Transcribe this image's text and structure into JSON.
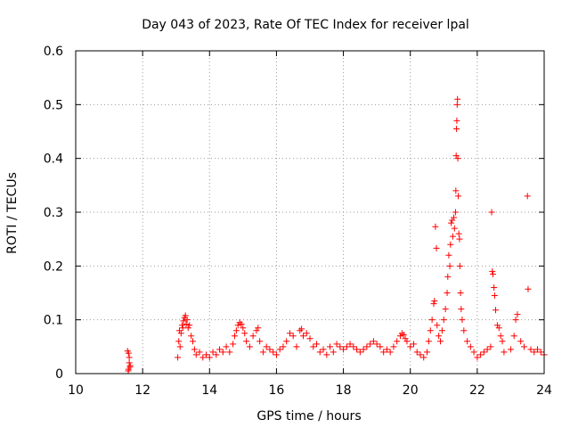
{
  "chart_data": {
    "type": "scatter",
    "title": "Day 043 of 2023, Rate Of TEC Index for receiver lpal",
    "xlabel": "GPS time / hours",
    "ylabel": "ROTI / TECUs",
    "xlim": [
      10,
      24
    ],
    "ylim": [
      0,
      0.6
    ],
    "x_ticks": [
      "10",
      "12",
      "14",
      "16",
      "18",
      "20",
      "22",
      "24"
    ],
    "y_ticks": [
      "0",
      "0.1",
      "0.2",
      "0.3",
      "0.4",
      "0.5",
      "0.6"
    ],
    "grid": true,
    "marker": "plus",
    "color": "#ff0000",
    "series": [
      {
        "points": [
          [
            11.55,
            0.042
          ],
          [
            11.58,
            0.038
          ],
          [
            11.6,
            0.02
          ],
          [
            11.62,
            0.012
          ],
          [
            11.58,
            0.008
          ],
          [
            11.63,
            0.015
          ],
          [
            11.57,
            0.005
          ],
          [
            11.6,
            0.03
          ],
          [
            13.05,
            0.03
          ],
          [
            13.08,
            0.06
          ],
          [
            13.1,
            0.08
          ],
          [
            13.12,
            0.05
          ],
          [
            13.15,
            0.075
          ],
          [
            13.18,
            0.09
          ],
          [
            13.2,
            0.085
          ],
          [
            13.22,
            0.098
          ],
          [
            13.25,
            0.104
          ],
          [
            13.28,
            0.108
          ],
          [
            13.3,
            0.092
          ],
          [
            13.33,
            0.1
          ],
          [
            13.36,
            0.085
          ],
          [
            13.4,
            0.09
          ],
          [
            13.45,
            0.07
          ],
          [
            13.5,
            0.06
          ],
          [
            13.55,
            0.045
          ],
          [
            13.6,
            0.035
          ],
          [
            13.7,
            0.04
          ],
          [
            13.8,
            0.03
          ],
          [
            13.9,
            0.035
          ],
          [
            14.0,
            0.03
          ],
          [
            14.1,
            0.04
          ],
          [
            14.2,
            0.035
          ],
          [
            14.3,
            0.045
          ],
          [
            14.4,
            0.04
          ],
          [
            14.5,
            0.05
          ],
          [
            14.6,
            0.04
          ],
          [
            14.7,
            0.055
          ],
          [
            14.75,
            0.07
          ],
          [
            14.8,
            0.08
          ],
          [
            14.85,
            0.09
          ],
          [
            14.9,
            0.095
          ],
          [
            14.95,
            0.092
          ],
          [
            15.0,
            0.085
          ],
          [
            15.05,
            0.075
          ],
          [
            15.1,
            0.06
          ],
          [
            15.2,
            0.05
          ],
          [
            15.3,
            0.07
          ],
          [
            15.4,
            0.08
          ],
          [
            15.45,
            0.085
          ],
          [
            15.5,
            0.06
          ],
          [
            15.6,
            0.04
          ],
          [
            15.7,
            0.05
          ],
          [
            15.8,
            0.045
          ],
          [
            15.9,
            0.04
          ],
          [
            16.0,
            0.035
          ],
          [
            16.1,
            0.045
          ],
          [
            16.2,
            0.05
          ],
          [
            16.3,
            0.06
          ],
          [
            16.4,
            0.075
          ],
          [
            16.5,
            0.07
          ],
          [
            16.6,
            0.05
          ],
          [
            16.7,
            0.08
          ],
          [
            16.75,
            0.083
          ],
          [
            16.8,
            0.07
          ],
          [
            16.9,
            0.075
          ],
          [
            17.0,
            0.065
          ],
          [
            17.1,
            0.05
          ],
          [
            17.2,
            0.055
          ],
          [
            17.3,
            0.04
          ],
          [
            17.4,
            0.045
          ],
          [
            17.5,
            0.035
          ],
          [
            17.6,
            0.05
          ],
          [
            17.7,
            0.04
          ],
          [
            17.8,
            0.055
          ],
          [
            17.9,
            0.05
          ],
          [
            18.0,
            0.045
          ],
          [
            18.1,
            0.05
          ],
          [
            18.2,
            0.055
          ],
          [
            18.3,
            0.05
          ],
          [
            18.4,
            0.045
          ],
          [
            18.5,
            0.04
          ],
          [
            18.6,
            0.045
          ],
          [
            18.7,
            0.05
          ],
          [
            18.8,
            0.055
          ],
          [
            18.9,
            0.06
          ],
          [
            19.0,
            0.055
          ],
          [
            19.1,
            0.05
          ],
          [
            19.2,
            0.04
          ],
          [
            19.3,
            0.045
          ],
          [
            19.4,
            0.04
          ],
          [
            19.5,
            0.05
          ],
          [
            19.6,
            0.06
          ],
          [
            19.7,
            0.07
          ],
          [
            19.75,
            0.075
          ],
          [
            19.8,
            0.072
          ],
          [
            19.85,
            0.065
          ],
          [
            19.9,
            0.06
          ],
          [
            20.0,
            0.05
          ],
          [
            20.1,
            0.055
          ],
          [
            20.2,
            0.04
          ],
          [
            20.3,
            0.035
          ],
          [
            20.4,
            0.03
          ],
          [
            20.5,
            0.04
          ],
          [
            20.55,
            0.06
          ],
          [
            20.6,
            0.08
          ],
          [
            20.65,
            0.1
          ],
          [
            20.7,
            0.13
          ],
          [
            20.72,
            0.135
          ],
          [
            20.75,
            0.273
          ],
          [
            20.78,
            0.233
          ],
          [
            20.8,
            0.09
          ],
          [
            20.85,
            0.07
          ],
          [
            20.9,
            0.06
          ],
          [
            20.95,
            0.08
          ],
          [
            21.0,
            0.1
          ],
          [
            21.05,
            0.12
          ],
          [
            21.1,
            0.15
          ],
          [
            21.12,
            0.18
          ],
          [
            21.15,
            0.22
          ],
          [
            21.18,
            0.2
          ],
          [
            21.2,
            0.24
          ],
          [
            21.22,
            0.28
          ],
          [
            21.25,
            0.285
          ],
          [
            21.27,
            0.255
          ],
          [
            21.3,
            0.29
          ],
          [
            21.32,
            0.27
          ],
          [
            21.35,
            0.3
          ],
          [
            21.36,
            0.34
          ],
          [
            21.37,
            0.405
          ],
          [
            21.38,
            0.455
          ],
          [
            21.39,
            0.47
          ],
          [
            21.4,
            0.5
          ],
          [
            21.41,
            0.51
          ],
          [
            21.42,
            0.4
          ],
          [
            21.43,
            0.33
          ],
          [
            21.45,
            0.26
          ],
          [
            21.47,
            0.25
          ],
          [
            21.48,
            0.2
          ],
          [
            21.5,
            0.15
          ],
          [
            21.52,
            0.12
          ],
          [
            21.55,
            0.1
          ],
          [
            21.6,
            0.08
          ],
          [
            21.7,
            0.06
          ],
          [
            21.8,
            0.05
          ],
          [
            21.9,
            0.04
          ],
          [
            22.0,
            0.03
          ],
          [
            22.1,
            0.035
          ],
          [
            22.2,
            0.04
          ],
          [
            22.3,
            0.045
          ],
          [
            22.4,
            0.05
          ],
          [
            22.43,
            0.3
          ],
          [
            22.45,
            0.19
          ],
          [
            22.47,
            0.185
          ],
          [
            22.5,
            0.16
          ],
          [
            22.52,
            0.145
          ],
          [
            22.55,
            0.118
          ],
          [
            22.6,
            0.09
          ],
          [
            22.65,
            0.085
          ],
          [
            22.7,
            0.07
          ],
          [
            22.75,
            0.06
          ],
          [
            22.8,
            0.04
          ],
          [
            23.0,
            0.045
          ],
          [
            23.1,
            0.07
          ],
          [
            23.15,
            0.1
          ],
          [
            23.2,
            0.11
          ],
          [
            23.3,
            0.06
          ],
          [
            23.4,
            0.05
          ],
          [
            23.5,
            0.33
          ],
          [
            23.52,
            0.157
          ],
          [
            23.6,
            0.045
          ],
          [
            23.7,
            0.04
          ],
          [
            23.8,
            0.045
          ],
          [
            23.9,
            0.04
          ],
          [
            24.0,
            0.035
          ]
        ]
      }
    ]
  }
}
